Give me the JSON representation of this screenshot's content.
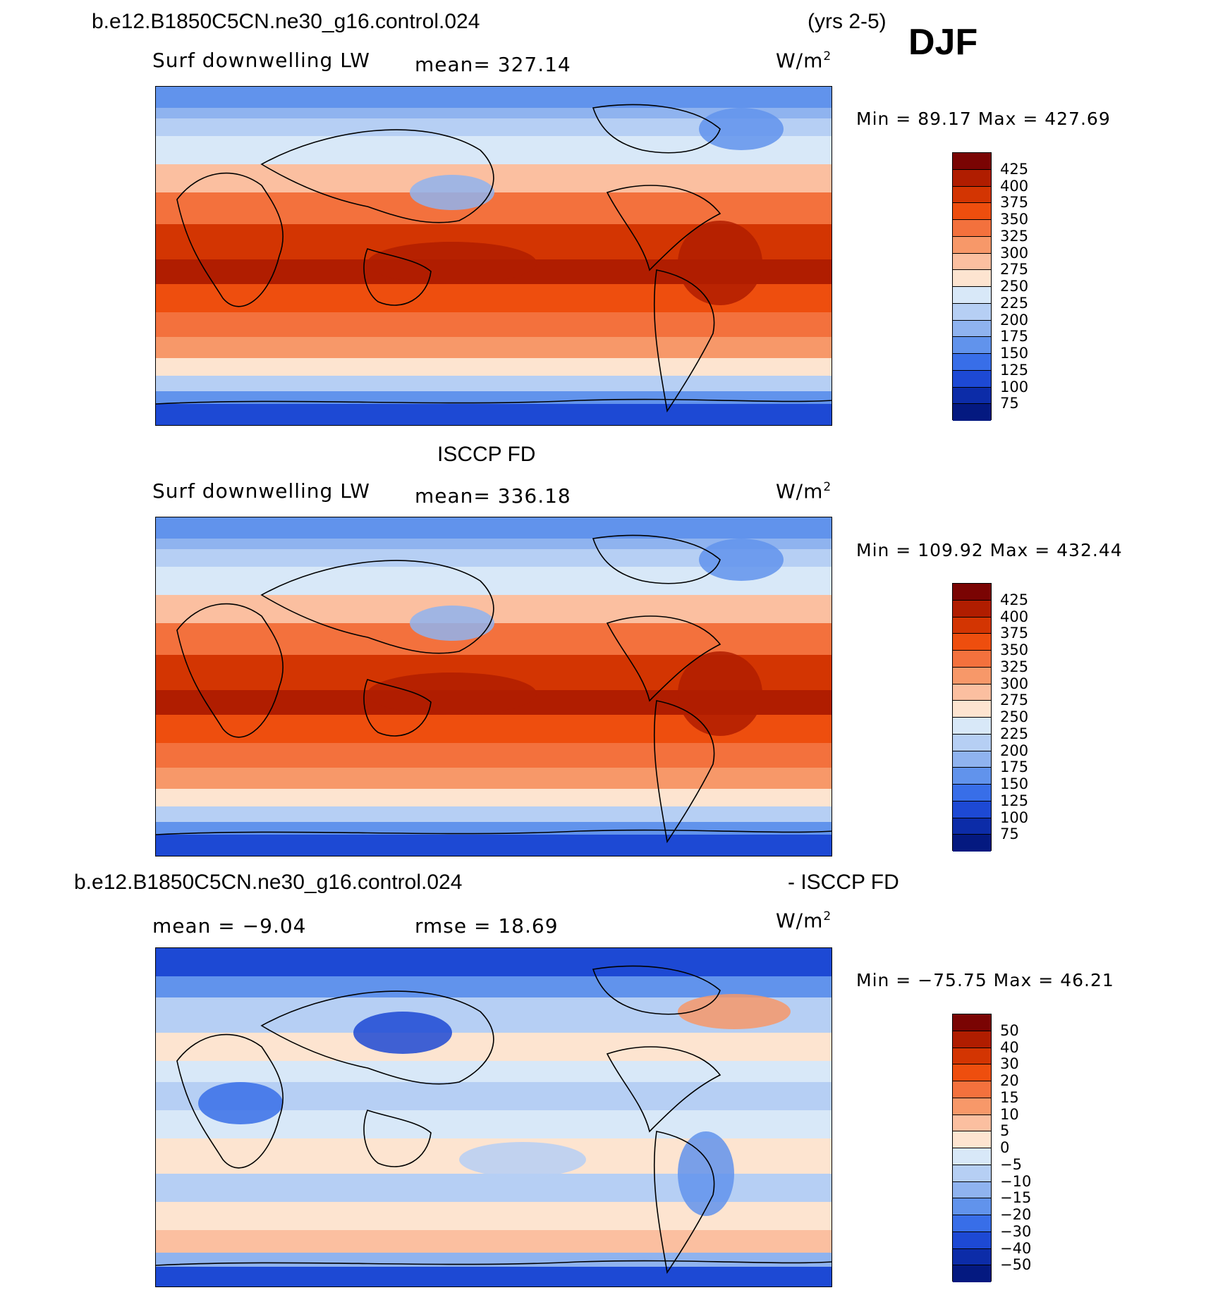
{
  "header": {
    "case_name": "b.e12.B1850C5CN.ne30_g16.control.024",
    "years": "(yrs 2-5)",
    "season": "DJF"
  },
  "panels": [
    {
      "title": "",
      "variable": "Surf downwelling LW",
      "mean_text": "mean= 327.14",
      "units": "W/m",
      "units_exp": "2",
      "minmax_text": "Min =  89.17 Max = 427.69",
      "colorbar": {
        "labels": [
          "425",
          "400",
          "375",
          "350",
          "325",
          "300",
          "275",
          "250",
          "225",
          "200",
          "175",
          "150",
          "125",
          "100",
          "75"
        ],
        "colors": [
          "#7a0403",
          "#b01d00",
          "#d33502",
          "#ee4e0e",
          "#f3713d",
          "#f79869",
          "#fbbfa0",
          "#fde4d0",
          "#d8e8f8",
          "#b6cff4",
          "#8fb3ef",
          "#6193ec",
          "#386ee8",
          "#1d49d4",
          "#0c2ca8",
          "#041980"
        ]
      },
      "map_palette": "full"
    },
    {
      "title": "ISCCP FD",
      "variable": "Surf downwelling LW",
      "mean_text": "mean= 336.18",
      "units": "W/m",
      "units_exp": "2",
      "minmax_text": "Min = 109.92 Max = 432.44",
      "colorbar": {
        "labels": [
          "425",
          "400",
          "375",
          "350",
          "325",
          "300",
          "275",
          "250",
          "225",
          "200",
          "175",
          "150",
          "125",
          "100",
          "75"
        ],
        "colors": [
          "#7a0403",
          "#b01d00",
          "#d33502",
          "#ee4e0e",
          "#f3713d",
          "#f79869",
          "#fbbfa0",
          "#fde4d0",
          "#d8e8f8",
          "#b6cff4",
          "#8fb3ef",
          "#6193ec",
          "#386ee8",
          "#1d49d4",
          "#0c2ca8",
          "#041980"
        ]
      },
      "map_palette": "full"
    },
    {
      "title_left": "b.e12.B1850C5CN.ne30_g16.control.024",
      "title_right": "- ISCCP FD",
      "mean_text": "mean =  −9.04",
      "rmse_text": "rmse =  18.69",
      "units": "W/m",
      "units_exp": "2",
      "minmax_text": "Min = −75.75 Max =  46.21",
      "colorbar": {
        "labels": [
          "50",
          "40",
          "30",
          "20",
          "15",
          "10",
          "5",
          "0",
          "−5",
          "−10",
          "−15",
          "−20",
          "−30",
          "−40",
          "−50"
        ],
        "colors": [
          "#7a0403",
          "#b01d00",
          "#d33502",
          "#ee4e0e",
          "#f3713d",
          "#f79869",
          "#fbbfa0",
          "#fde4d0",
          "#d8e8f8",
          "#b6cff4",
          "#8fb3ef",
          "#6193ec",
          "#386ee8",
          "#1d49d4",
          "#0c2ca8",
          "#041980"
        ]
      },
      "map_palette": "diff"
    }
  ]
}
